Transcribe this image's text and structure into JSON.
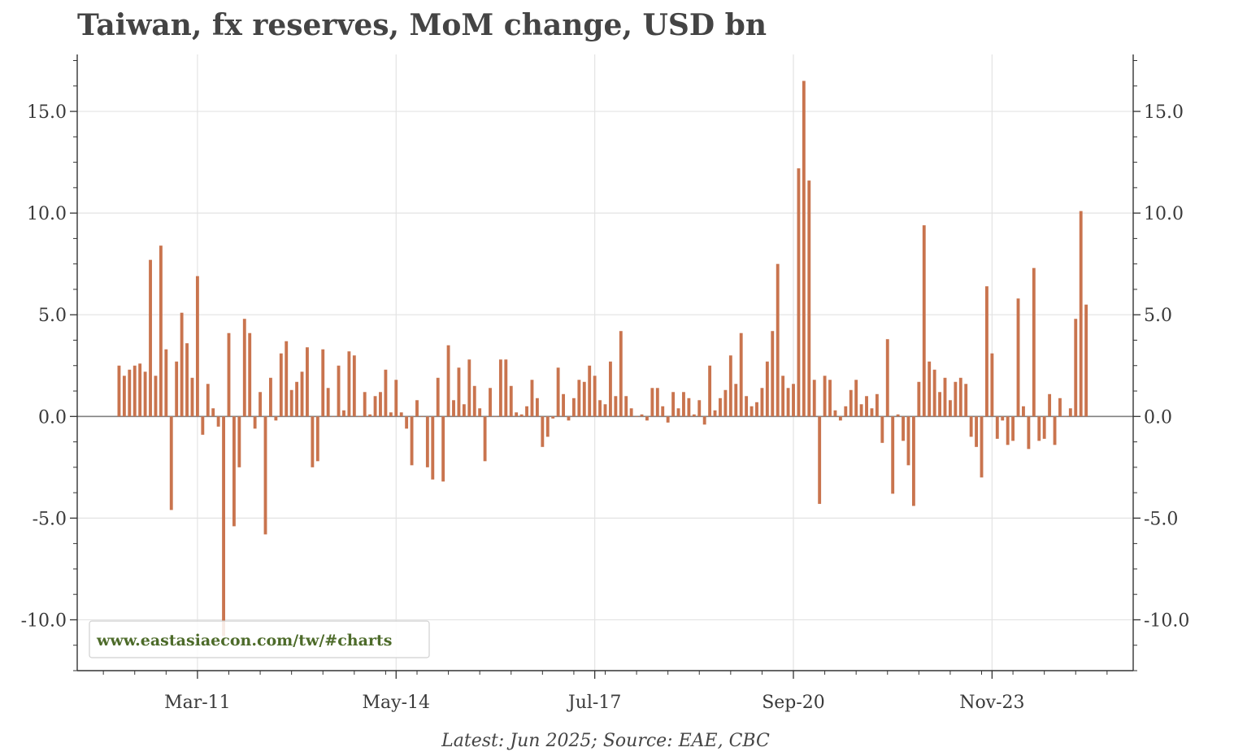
{
  "colors": {
    "bar": "#c9744e",
    "grid": "#e3e3e3",
    "axis": "#333333",
    "zero_line": "#808080",
    "watermark": "#4d6b2a"
  },
  "footer": {
    "source": "Latest: Jun 2025; Source: EAE, CBC"
  },
  "watermark": {
    "text": "www.eastasiaecon.com/tw/#charts"
  },
  "chart_data": {
    "type": "bar",
    "title": "Taiwan, fx reserves, MoM change, USD bn",
    "xlabel": "",
    "ylabel": "",
    "ylim": [
      -12.5,
      17.8
    ],
    "y_ticks": [
      -10,
      -5,
      0,
      5,
      10,
      15
    ],
    "y_tick_labels": [
      "-10.0",
      "-5.0",
      "0.0",
      "5.0",
      "10.0",
      "15.0"
    ],
    "x_ticks": [
      {
        "label": "Mar-11",
        "index": 0
      },
      {
        "label": "May-14",
        "index": 38
      },
      {
        "label": "Jul-17",
        "index": 76
      },
      {
        "label": "Sep-20",
        "index": 114
      },
      {
        "label": "Nov-23",
        "index": 152
      }
    ],
    "x_start_index": -23,
    "x_end_index": 179,
    "first_bar_index": -15,
    "bar_width_months": 0.6,
    "values": [
      2.5,
      2.0,
      2.3,
      2.5,
      2.6,
      2.2,
      7.7,
      2.0,
      8.4,
      3.3,
      -4.6,
      2.7,
      5.1,
      3.6,
      1.9,
      6.9,
      -0.9,
      1.6,
      0.4,
      -0.5,
      -10.8,
      4.1,
      -5.4,
      -2.5,
      4.8,
      4.1,
      -0.6,
      1.2,
      -5.8,
      1.9,
      -0.2,
      3.1,
      3.7,
      1.3,
      1.7,
      2.2,
      3.4,
      -2.5,
      -2.2,
      3.3,
      1.4,
      0.0,
      2.5,
      0.3,
      3.2,
      3.0,
      0.0,
      1.2,
      0.1,
      1.0,
      1.2,
      2.3,
      0.2,
      1.8,
      0.2,
      -0.6,
      -2.4,
      0.8,
      0.0,
      -2.5,
      -3.1,
      1.9,
      -3.2,
      3.5,
      0.8,
      2.4,
      0.6,
      2.8,
      1.5,
      0.4,
      -2.2,
      1.4,
      0.0,
      2.8,
      2.8,
      1.5,
      0.2,
      0.1,
      0.5,
      1.8,
      0.9,
      -1.5,
      -1.0,
      -0.1,
      2.4,
      1.1,
      -0.2,
      0.9,
      1.8,
      1.7,
      2.5,
      2.0,
      0.8,
      0.6,
      2.7,
      1.0,
      4.2,
      1.0,
      0.4,
      0.0,
      0.1,
      -0.2,
      1.4,
      1.4,
      0.5,
      -0.3,
      1.2,
      0.4,
      1.2,
      0.9,
      0.1,
      0.8,
      -0.4,
      2.5,
      0.3,
      0.9,
      1.3,
      3.0,
      1.6,
      4.1,
      1.0,
      0.5,
      0.7,
      1.4,
      2.7,
      4.2,
      7.5,
      2.0,
      1.4,
      1.6,
      12.2,
      16.5,
      11.6,
      1.8,
      -4.3,
      2.0,
      1.8,
      0.3,
      -0.2,
      0.5,
      1.3,
      1.8,
      0.6,
      1.0,
      0.4,
      1.1,
      -1.3,
      3.8,
      -3.8,
      0.1,
      -1.2,
      -2.4,
      -4.4,
      1.7,
      9.4,
      2.7,
      2.3,
      1.2,
      1.9,
      0.8,
      1.7,
      1.9,
      1.6,
      -1.0,
      -1.5,
      -3.0,
      6.4,
      3.1,
      -1.1,
      -0.2,
      -1.4,
      -1.2,
      5.8,
      0.5,
      -1.6,
      7.3,
      -1.2,
      -1.1,
      1.1,
      -1.4,
      0.9,
      0.0,
      0.4,
      4.8,
      10.1,
      5.5
    ]
  }
}
